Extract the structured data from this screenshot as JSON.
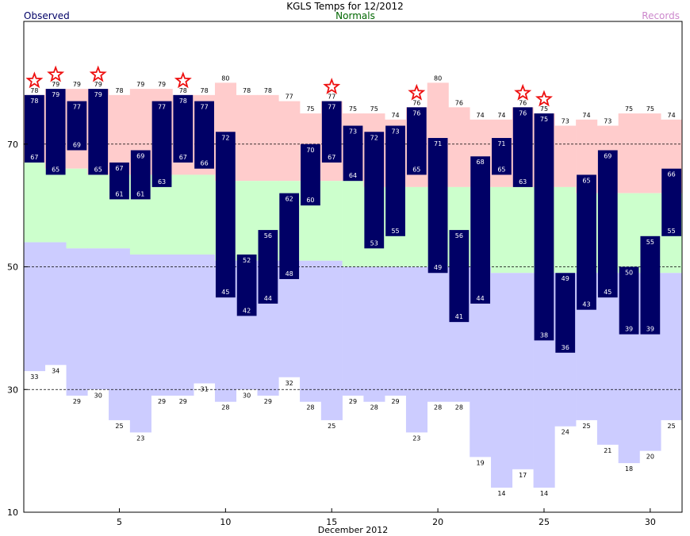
{
  "chart_data": {
    "type": "bar",
    "title": "KGLS Temps for 12/2012",
    "legend": {
      "observed": "Observed",
      "normals": "Normals",
      "records": "Records"
    },
    "xlabel": "December 2012",
    "ylabel": "",
    "ylim": [
      10,
      90
    ],
    "yticks": [
      "10",
      "30",
      "50",
      "70"
    ],
    "xticks": [
      "5",
      "10",
      "15",
      "20",
      "25",
      "30"
    ],
    "gridlines": [
      30,
      50,
      70
    ],
    "days": [
      1,
      2,
      3,
      4,
      5,
      6,
      7,
      8,
      9,
      10,
      11,
      12,
      13,
      14,
      15,
      16,
      17,
      18,
      19,
      20,
      21,
      22,
      23,
      24,
      25,
      26,
      27,
      28,
      29,
      30,
      31
    ],
    "observed_high": [
      78,
      79,
      77,
      79,
      67,
      69,
      77,
      78,
      77,
      72,
      52,
      56,
      62,
      70,
      77,
      73,
      72,
      73,
      76,
      71,
      56,
      68,
      71,
      76,
      75,
      49,
      65,
      69,
      50,
      55,
      66
    ],
    "observed_low": [
      67,
      65,
      69,
      65,
      61,
      61,
      63,
      67,
      66,
      45,
      42,
      44,
      48,
      60,
      67,
      64,
      53,
      55,
      65,
      49,
      41,
      44,
      65,
      63,
      38,
      36,
      43,
      45,
      39,
      39,
      55
    ],
    "normal_high": [
      67,
      66,
      66,
      65,
      65,
      65,
      65,
      65,
      65,
      64,
      64,
      64,
      64,
      64,
      64,
      64,
      63,
      63,
      63,
      63,
      63,
      63,
      63,
      63,
      63,
      63,
      62,
      62,
      62,
      62,
      62
    ],
    "normal_low": [
      54,
      54,
      53,
      53,
      53,
      52,
      52,
      52,
      52,
      51,
      51,
      51,
      51,
      51,
      51,
      50,
      50,
      50,
      50,
      50,
      50,
      50,
      49,
      49,
      49,
      49,
      49,
      49,
      49,
      49,
      49
    ],
    "record_high": [
      78,
      79,
      79,
      79,
      78,
      79,
      79,
      78,
      78,
      80,
      78,
      78,
      77,
      75,
      77,
      75,
      75,
      74,
      76,
      80,
      76,
      74,
      74,
      76,
      75,
      73,
      74,
      73,
      75,
      75,
      74
    ],
    "record_low": [
      33,
      34,
      29,
      30,
      25,
      23,
      29,
      29,
      31,
      28,
      30,
      29,
      32,
      28,
      25,
      29,
      28,
      29,
      23,
      28,
      28,
      19,
      14,
      17,
      14,
      24,
      25,
      21,
      18,
      20,
      25
    ],
    "record_set": [
      1,
      2,
      4,
      8,
      15,
      19,
      24,
      25
    ],
    "colors": {
      "observed": "#000066",
      "normal": "#ccffcc",
      "record_high_band": "#ffcccc",
      "record_low_band": "#ccccff",
      "star": "#ee1111",
      "observed_legend": "#000066",
      "normals_legend": "#006600",
      "records_legend": "#cc88cc"
    }
  }
}
